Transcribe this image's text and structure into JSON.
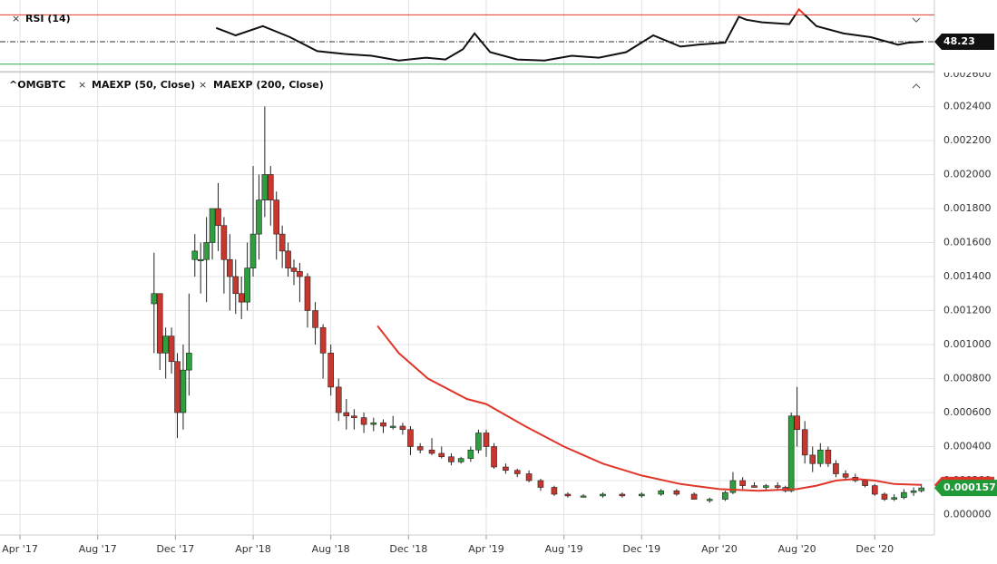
{
  "chart_data": [
    {
      "type": "line",
      "title": "RSI (14)",
      "x": [
        10.1,
        11.1,
        12.5,
        13.9,
        15.3,
        16.7,
        18.1,
        19.5,
        20.9,
        21.9,
        22.8,
        23.4,
        24.2,
        25.6,
        27.0,
        28.4,
        29.8,
        31.2,
        32.6,
        34.0,
        34.9,
        36.3,
        37.0,
        37.4,
        38.2,
        39.6,
        40.1,
        41.0,
        42.4,
        43.8,
        45.2,
        45.7,
        46.5
      ],
      "values": [
        59.4,
        53.4,
        60.9,
        51.9,
        40.6,
        38.3,
        36.8,
        33.0,
        35.3,
        33.8,
        42.1,
        54.9,
        39.8,
        33.8,
        33.0,
        36.8,
        35.3,
        39.8,
        53.4,
        44.3,
        45.8,
        47.4,
        68.5,
        66.0,
        64.0,
        62.5,
        74.5,
        60.9,
        54.9,
        51.9,
        45.8,
        47.4,
        48.23
      ],
      "value_labels": [
        null,
        null,
        null,
        null,
        null,
        null,
        null,
        null,
        null,
        null,
        null,
        null,
        null,
        null,
        null,
        null,
        null,
        null,
        null,
        null,
        null,
        null,
        null,
        null,
        null,
        null,
        null,
        null,
        null,
        null,
        null,
        null,
        "48.23"
      ],
      "color": "#111111",
      "ylim": [
        24.7,
        80.6
      ],
      "xlim": [
        -1.03,
        47.07
      ],
      "levels": [
        {
          "value": 70,
          "color": "#e8392b"
        },
        {
          "value": 30,
          "color": "#2ea84a"
        }
      ]
    },
    {
      "type": "candlestick",
      "title": "^OMGBTC",
      "x": [
        6.9,
        7.2,
        7.5,
        7.8,
        8.1,
        8.4,
        8.7,
        9.0,
        9.3,
        9.6,
        9.9,
        10.2,
        10.5,
        10.8,
        11.1,
        11.4,
        11.7,
        12.0,
        12.3,
        12.6,
        12.9,
        13.2,
        13.5,
        13.8,
        14.1,
        14.4,
        14.8,
        15.2,
        15.6,
        16.0,
        16.4,
        16.8,
        17.2,
        17.7,
        18.2,
        18.7,
        19.2,
        19.7,
        20.1,
        20.6,
        21.2,
        21.7,
        22.2,
        22.7,
        23.2,
        23.6,
        24.0,
        24.4,
        25.0,
        25.6,
        26.2,
        26.8,
        27.5,
        28.2,
        29.0,
        30.0,
        31.0,
        32.0,
        33.0,
        33.8,
        34.7,
        35.5,
        36.3,
        36.7,
        37.2,
        37.8,
        38.4,
        39.0,
        39.4,
        39.7,
        40.0,
        40.4,
        40.8,
        41.2,
        41.6,
        42.0,
        42.5,
        43.0,
        43.5,
        44.0,
        44.5,
        45.0,
        45.5,
        46.0,
        46.4
      ],
      "open": [
        0.00124,
        0.0013,
        0.00095,
        0.00105,
        0.0009,
        0.0006,
        0.00085,
        0.0015,
        0.0015,
        0.0015,
        0.0016,
        0.0018,
        0.0017,
        0.0015,
        0.0014,
        0.0013,
        0.00125,
        0.00145,
        0.00165,
        0.00185,
        0.002,
        0.00185,
        0.00165,
        0.00155,
        0.00145,
        0.00143,
        0.0014,
        0.0012,
        0.0011,
        0.00095,
        0.00075,
        0.0006,
        0.00058,
        0.00057,
        0.00053,
        0.00054,
        0.00052,
        0.00052,
        0.0005,
        0.0004,
        0.00038,
        0.00036,
        0.00034,
        0.00031,
        0.00033,
        0.00038,
        0.00048,
        0.0004,
        0.00028,
        0.00026,
        0.00024,
        0.0002,
        0.00016,
        0.00012,
        0.00011,
        0.00011,
        0.00012,
        0.00011,
        0.00012,
        0.00014,
        0.00012,
        9e-05,
        9e-05,
        0.00013,
        0.0002,
        0.00017,
        0.00016,
        0.00017,
        0.00016,
        0.00014,
        0.00058,
        0.0005,
        0.00035,
        0.0003,
        0.00038,
        0.0003,
        0.00024,
        0.00022,
        0.0002,
        0.00017,
        0.00012,
        9e-05,
        0.0001,
        0.00013,
        0.00014
      ],
      "high": [
        0.00154,
        0.0013,
        0.0011,
        0.0011,
        0.00095,
        0.001,
        0.0013,
        0.00165,
        0.0016,
        0.00175,
        0.0018,
        0.00195,
        0.00175,
        0.00165,
        0.0015,
        0.0014,
        0.0016,
        0.00205,
        0.002,
        0.0024,
        0.00205,
        0.0019,
        0.0017,
        0.0016,
        0.0015,
        0.00148,
        0.00142,
        0.00125,
        0.00112,
        0.001,
        0.0008,
        0.00068,
        0.00062,
        0.0006,
        0.00057,
        0.00056,
        0.00058,
        0.00054,
        0.00052,
        0.00042,
        0.00045,
        0.0004,
        0.00036,
        0.00034,
        0.0004,
        0.0005,
        0.0005,
        0.00042,
        0.0003,
        0.00027,
        0.00026,
        0.00021,
        0.00017,
        0.00013,
        0.00012,
        0.00013,
        0.00013,
        0.00013,
        0.00015,
        0.00015,
        0.00013,
        0.0001,
        0.00014,
        0.00025,
        0.00022,
        0.00019,
        0.00018,
        0.00019,
        0.00017,
        0.0006,
        0.00075,
        0.00055,
        0.0004,
        0.00042,
        0.0004,
        0.00032,
        0.00026,
        0.00024,
        0.00021,
        0.00018,
        0.00013,
        0.00012,
        0.00015,
        0.00016,
        0.00018
      ],
      "low": [
        0.00095,
        0.00085,
        0.0008,
        0.00083,
        0.00045,
        0.0005,
        0.0007,
        0.0014,
        0.0013,
        0.00125,
        0.0015,
        0.00155,
        0.0013,
        0.0012,
        0.00118,
        0.00115,
        0.0012,
        0.0014,
        0.0015,
        0.00175,
        0.0017,
        0.0015,
        0.00145,
        0.0014,
        0.00135,
        0.00125,
        0.0011,
        0.001,
        0.0008,
        0.0007,
        0.00055,
        0.0005,
        0.0005,
        0.00048,
        0.00049,
        0.00048,
        0.0005,
        0.00047,
        0.00035,
        0.00036,
        0.00035,
        0.00033,
        0.00029,
        0.0003,
        0.00031,
        0.00036,
        0.00034,
        0.00027,
        0.00024,
        0.00022,
        0.00019,
        0.00014,
        0.00011,
        0.0001,
        0.0001,
        0.0001,
        0.0001,
        0.0001,
        0.00011,
        0.00011,
        9e-05,
        7e-05,
        8e-05,
        0.00012,
        0.00015,
        0.00016,
        0.00014,
        0.00015,
        0.00013,
        0.00013,
        0.0004,
        0.0003,
        0.00025,
        0.00028,
        0.00028,
        0.00022,
        0.0002,
        0.00019,
        0.00016,
        0.00011,
        8e-05,
        8e-05,
        9e-05,
        0.00011,
        0.00013
      ],
      "close": [
        0.0013,
        0.00095,
        0.00105,
        0.0009,
        0.0006,
        0.00085,
        0.00095,
        0.00155,
        0.0015,
        0.0016,
        0.0018,
        0.0017,
        0.0015,
        0.0014,
        0.0013,
        0.00125,
        0.00145,
        0.00165,
        0.00185,
        0.002,
        0.00185,
        0.00165,
        0.00155,
        0.00145,
        0.00143,
        0.0014,
        0.0012,
        0.0011,
        0.00095,
        0.00075,
        0.0006,
        0.00058,
        0.00057,
        0.00053,
        0.00054,
        0.00052,
        0.00052,
        0.0005,
        0.0004,
        0.00038,
        0.00036,
        0.00034,
        0.00031,
        0.00033,
        0.00038,
        0.00048,
        0.0004,
        0.00028,
        0.00026,
        0.00024,
        0.0002,
        0.00016,
        0.00012,
        0.00011,
        0.00011,
        0.00012,
        0.00011,
        0.00012,
        0.00014,
        0.00012,
        9e-05,
        9e-05,
        0.00013,
        0.0002,
        0.00017,
        0.00016,
        0.00017,
        0.00016,
        0.00014,
        0.00058,
        0.0005,
        0.00035,
        0.0003,
        0.00038,
        0.0003,
        0.00024,
        0.00022,
        0.0002,
        0.00017,
        0.00012,
        9e-05,
        0.0001,
        0.00013,
        0.00014,
        0.000157
      ],
      "up_color": "#2e9e3e",
      "down_color": "#c8372d",
      "indicators": [
        {
          "name": "MAEXP (50, Close)",
          "color": "#e0362a",
          "x": [
            18.4,
            19.5,
            21.0,
            23.0,
            24.0,
            26.0,
            28.0,
            30.0,
            32.0,
            34.0,
            36.0,
            38.0,
            40.0,
            41.0,
            42.0,
            43.0,
            44.0,
            45.0,
            46.4
          ],
          "values": [
            0.00111,
            0.00095,
            0.0008,
            0.00068,
            0.00065,
            0.00052,
            0.0004,
            0.0003,
            0.00023,
            0.00018,
            0.00015,
            0.00014,
            0.00015,
            0.00017,
            0.0002,
            0.00021,
            0.0002,
            0.00018,
            0.000175
          ]
        },
        {
          "name": "MAEXP (200, Close)"
        }
      ],
      "xlim": [
        -1.03,
        47.07
      ],
      "xticks": [
        {
          "value": 0,
          "label": "Apr '17"
        },
        {
          "value": 4,
          "label": "Aug '17"
        },
        {
          "value": 8,
          "label": "Dec '17"
        },
        {
          "value": 12,
          "label": "Apr '18"
        },
        {
          "value": 16,
          "label": "Aug '18"
        },
        {
          "value": 20,
          "label": "Dec '18"
        },
        {
          "value": 24,
          "label": "Apr '19"
        },
        {
          "value": 28,
          "label": "Aug '19"
        },
        {
          "value": 32,
          "label": "Dec '19"
        },
        {
          "value": 36,
          "label": "Apr '20"
        },
        {
          "value": 40,
          "label": "Aug '20"
        },
        {
          "value": 44,
          "label": "Dec '20"
        }
      ],
      "ylim": [
        -0.00012,
        0.0026
      ],
      "yticks": [
        {
          "value": 0,
          "label": "0.000000"
        },
        {
          "value": 0.0002,
          "label": "0.000200"
        },
        {
          "value": 0.0004,
          "label": "0.000400"
        },
        {
          "value": 0.0006,
          "label": "0.000600"
        },
        {
          "value": 0.0008,
          "label": "0.000800"
        },
        {
          "value": 0.001,
          "label": "0.001000"
        },
        {
          "value": 0.0012,
          "label": "0.001200"
        },
        {
          "value": 0.0014,
          "label": "0.001400"
        },
        {
          "value": 0.0016,
          "label": "0.001600"
        },
        {
          "value": 0.0018,
          "label": "0.001800"
        },
        {
          "value": 0.002,
          "label": "0.002000"
        },
        {
          "value": 0.0022,
          "label": "0.002200"
        },
        {
          "value": 0.0024,
          "label": "0.002400"
        },
        {
          "value": 0.0026,
          "label": "0.002600"
        }
      ],
      "grid": true,
      "last_color": "#1f9a37"
    }
  ]
}
